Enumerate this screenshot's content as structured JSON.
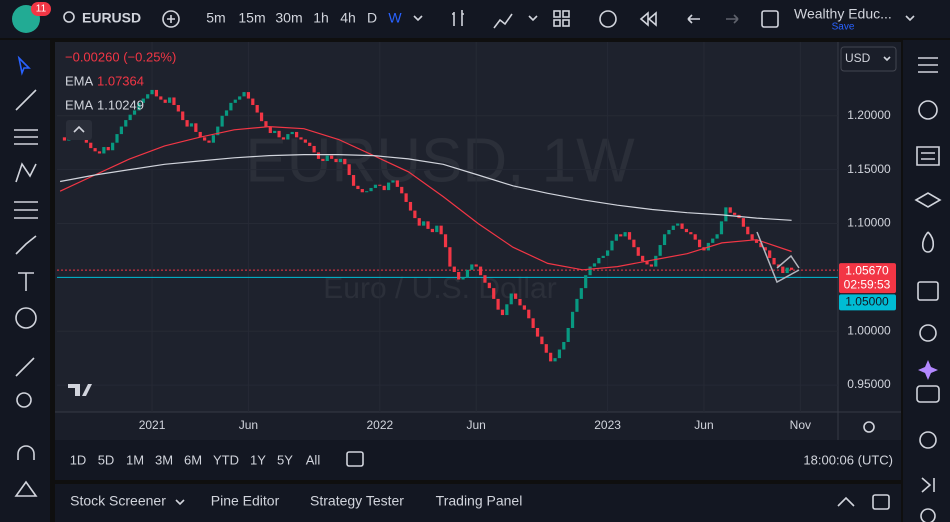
{
  "app": {
    "badge": "11",
    "symbol": "EURUSD",
    "timeframes": [
      "5m",
      "15m",
      "30m",
      "1h",
      "4h",
      "D",
      "W"
    ],
    "layout_name": "Wealthy Educ...",
    "save": "Save",
    "currency": "USD"
  },
  "chart_data": {
    "type": "candlestick",
    "watermark_title": "EURUSD, 1W",
    "watermark_subtitle": "Euro / U.S. Dollar",
    "change": "−0.00260 (−0.25%)",
    "up_color": "#089981",
    "down_color": "#f23645",
    "closes": [
      1.18,
      1.177,
      1.183,
      1.185,
      1.181,
      1.178,
      1.175,
      1.17,
      1.167,
      1.165,
      1.171,
      1.168,
      1.175,
      1.183,
      1.19,
      1.196,
      1.201,
      1.205,
      1.212,
      1.216,
      1.22,
      1.224,
      1.218,
      1.215,
      1.212,
      1.217,
      1.21,
      1.204,
      1.196,
      1.19,
      1.193,
      1.185,
      1.18,
      1.177,
      1.175,
      1.182,
      1.19,
      1.2,
      1.205,
      1.212,
      1.215,
      1.218,
      1.222,
      1.216,
      1.21,
      1.203,
      1.195,
      1.19,
      1.184,
      1.186,
      1.18,
      1.178,
      1.183,
      1.185,
      1.18,
      1.178,
      1.175,
      1.172,
      1.166,
      1.16,
      1.158,
      1.163,
      1.16,
      1.157,
      1.16,
      1.155,
      1.145,
      1.135,
      1.132,
      1.129,
      1.13,
      1.133,
      1.136,
      1.135,
      1.131,
      1.138,
      1.14,
      1.134,
      1.128,
      1.12,
      1.112,
      1.105,
      1.098,
      1.102,
      1.095,
      1.092,
      1.098,
      1.09,
      1.078,
      1.06,
      1.055,
      1.048,
      1.05,
      1.057,
      1.062,
      1.06,
      1.052,
      1.045,
      1.04,
      1.03,
      1.02,
      1.015,
      1.025,
      1.035,
      1.03,
      1.024,
      1.02,
      1.012,
      1.003,
      0.995,
      0.988,
      0.98,
      0.972,
      0.975,
      0.983,
      0.99,
      1.003,
      1.018,
      1.03,
      1.04,
      1.052,
      1.06,
      1.063,
      1.068,
      1.07,
      1.075,
      1.084,
      1.09,
      1.088,
      1.092,
      1.085,
      1.078,
      1.07,
      1.065,
      1.062,
      1.06,
      1.07,
      1.08,
      1.09,
      1.094,
      1.098,
      1.1,
      1.095,
      1.092,
      1.09,
      1.085,
      1.078,
      1.075,
      1.082,
      1.086,
      1.09,
      1.102,
      1.115,
      1.11,
      1.108,
      1.105,
      1.097,
      1.09,
      1.085,
      1.082,
      1.078,
      1.075,
      1.068,
      1.062,
      1.06,
      1.054,
      1.059,
      1.057
    ],
    "series": [
      {
        "name": "EMA",
        "color": "#f23645",
        "value_label": "1.07364",
        "values": [
          1.13,
          1.145,
          1.16,
          1.172,
          1.18,
          1.187,
          1.19,
          1.188,
          1.178,
          1.163,
          1.148,
          1.125,
          1.1,
          1.078,
          1.063,
          1.057,
          1.06,
          1.066,
          1.072,
          1.082,
          1.085,
          1.074
        ]
      },
      {
        "name": "EMA",
        "color": "#d1d4dc",
        "value_label": "1.10249",
        "values": [
          1.139,
          1.145,
          1.15,
          1.155,
          1.158,
          1.161,
          1.163,
          1.164,
          1.164,
          1.163,
          1.16,
          1.155,
          1.145,
          1.135,
          1.128,
          1.122,
          1.117,
          1.113,
          1.11,
          1.108,
          1.105,
          1.103
        ]
      }
    ],
    "xlim": [
      -0.7,
      177.6
    ],
    "xticks": [
      {
        "value": 21,
        "label": "2021"
      },
      {
        "value": 43,
        "label": "Jun"
      },
      {
        "value": 73,
        "label": "2022"
      },
      {
        "value": 95,
        "label": "Jun"
      },
      {
        "value": 125,
        "label": "2023"
      },
      {
        "value": 147,
        "label": "Jun"
      },
      {
        "value": 169,
        "label": "Nov"
      }
    ],
    "ylim": [
      0.925,
      1.2685
    ],
    "yticks": [
      {
        "value": 0.95,
        "label": "0.95000"
      },
      {
        "value": 1.0,
        "label": "1.00000"
      },
      {
        "value": 1.1,
        "label": "1.10000"
      },
      {
        "value": 1.15,
        "label": "1.15000"
      },
      {
        "value": 1.2,
        "label": "1.20000"
      }
    ],
    "price_lines": [
      {
        "value": 1.0567,
        "label": "1.05670",
        "color": "#f23645",
        "countdown": "02:59:53"
      },
      {
        "value": 1.05,
        "label": "1.05000",
        "color": "#00bcd4"
      }
    ]
  },
  "bottom": {
    "ranges": [
      "1D",
      "5D",
      "1M",
      "3M",
      "6M",
      "YTD",
      "1Y",
      "5Y",
      "All"
    ],
    "clock": "18:00:06 (UTC)",
    "panels": [
      "Stock Screener",
      "Pine Editor",
      "Strategy Tester",
      "Trading Panel"
    ]
  }
}
